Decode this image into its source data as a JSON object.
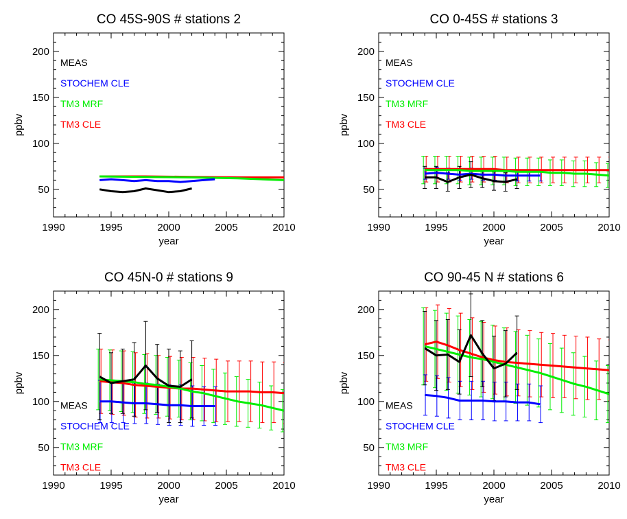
{
  "colors": {
    "MEAS": "#000000",
    "STOCHEM CLE": "#0000ff",
    "TM3 MRF": "#00ee00",
    "TM3 CLE": "#ff0000"
  },
  "legend_labels": [
    "MEAS",
    "STOCHEM CLE",
    "TM3 MRF",
    "TM3 CLE"
  ],
  "chart_data": [
    {
      "type": "line",
      "title": "CO 45S-90S # stations 2",
      "xlabel": "year",
      "ylabel": "ppbv",
      "xlim": [
        1990,
        2010
      ],
      "ylim": [
        20,
        220
      ],
      "xticks": [
        1990,
        1995,
        2000,
        2005,
        2010
      ],
      "yticks": [
        50,
        100,
        150,
        200
      ],
      "legend_position": "upper-left",
      "series": [
        {
          "name": "MEAS",
          "x": [
            1994,
            1995,
            1996,
            1997,
            1998,
            1999,
            2000,
            2001,
            2002
          ],
          "values": [
            50,
            48,
            47,
            48,
            51,
            49,
            47,
            48,
            51
          ]
        },
        {
          "name": "STOCHEM CLE",
          "x": [
            1994,
            1995,
            1996,
            1997,
            1998,
            1999,
            2000,
            2001,
            2002,
            2003,
            2004
          ],
          "values": [
            60,
            61,
            60,
            59,
            60,
            59,
            59,
            58,
            59,
            60,
            61
          ]
        },
        {
          "name": "TM3 MRF",
          "x": [
            1994,
            1998,
            2002,
            2006,
            2010
          ],
          "values": [
            64,
            63.5,
            63,
            62,
            60
          ]
        },
        {
          "name": "TM3 CLE",
          "x": [
            1994,
            1998,
            2002,
            2006,
            2010
          ],
          "values": [
            64,
            64,
            63.5,
            63,
            63
          ]
        }
      ]
    },
    {
      "type": "line",
      "title": "CO 0-45S # stations 3",
      "xlabel": "year",
      "ylabel": "ppbv",
      "xlim": [
        1990,
        2010
      ],
      "ylim": [
        20,
        220
      ],
      "xticks": [
        1990,
        1995,
        2000,
        2005,
        2010
      ],
      "yticks": [
        50,
        100,
        150,
        200
      ],
      "legend_position": "upper-left",
      "series": [
        {
          "name": "MEAS",
          "x": [
            1994,
            1995,
            1996,
            1997,
            1998,
            1999,
            2000,
            2001,
            2002
          ],
          "values": [
            63,
            63,
            58,
            63,
            66,
            62,
            59,
            58,
            61
          ],
          "err": [
            12,
            12,
            10,
            12,
            14,
            10,
            10,
            10,
            10
          ]
        },
        {
          "name": "STOCHEM CLE",
          "x": [
            1994,
            1995,
            1996,
            1997,
            1998,
            1999,
            2000,
            2001,
            2002,
            2003,
            2004
          ],
          "values": [
            67,
            68,
            67,
            66,
            67,
            66,
            66,
            65,
            65,
            65,
            65
          ],
          "err": [
            6,
            6,
            6,
            6,
            6,
            6,
            6,
            6,
            6,
            6,
            6
          ]
        },
        {
          "name": "TM3 MRF",
          "x": [
            1994,
            1995,
            1996,
            1997,
            1998,
            1999,
            2000,
            2001,
            2002,
            2003,
            2004,
            2005,
            2006,
            2007,
            2008,
            2009,
            2010
          ],
          "values": [
            71,
            71,
            71,
            71,
            70,
            70,
            70,
            70,
            69,
            69,
            69,
            68,
            68,
            67,
            67,
            66,
            65
          ],
          "err": [
            15,
            15,
            15,
            15,
            15,
            15,
            15,
            15,
            15,
            15,
            15,
            14,
            14,
            14,
            14,
            13,
            13
          ]
        },
        {
          "name": "TM3 CLE",
          "x": [
            1994,
            1995,
            1996,
            1997,
            1998,
            1999,
            2000,
            2001,
            2002,
            2003,
            2004,
            2005,
            2006,
            2007,
            2008,
            2009,
            2010
          ],
          "values": [
            72,
            72,
            72,
            72,
            72,
            72,
            72,
            71,
            71,
            71,
            71,
            71,
            71,
            71,
            71,
            71,
            71
          ],
          "err": [
            14,
            14,
            14,
            14,
            14,
            14,
            14,
            14,
            14,
            14,
            14,
            14,
            14,
            14,
            14,
            14,
            14
          ]
        }
      ]
    },
    {
      "type": "line",
      "title": "CO 45N-0 # stations 9",
      "xlabel": "year",
      "ylabel": "ppbv",
      "xlim": [
        1990,
        2010
      ],
      "ylim": [
        20,
        220
      ],
      "xticks": [
        1990,
        1995,
        2000,
        2005,
        2010
      ],
      "yticks": [
        50,
        100,
        150,
        200
      ],
      "legend_position": "lower-left",
      "series": [
        {
          "name": "MEAS",
          "x": [
            1994,
            1995,
            1996,
            1997,
            1998,
            1999,
            2000,
            2001,
            2002
          ],
          "values": [
            127,
            120,
            122,
            124,
            139,
            125,
            117,
            116,
            124
          ],
          "err": [
            47,
            33,
            35,
            40,
            48,
            37,
            40,
            39,
            42
          ]
        },
        {
          "name": "STOCHEM CLE",
          "x": [
            1994,
            1995,
            1996,
            1997,
            1998,
            1999,
            2000,
            2001,
            2002,
            2003,
            2004
          ],
          "values": [
            100,
            100,
            99,
            98,
            98,
            97,
            96,
            96,
            95,
            95,
            95
          ],
          "err": [
            23,
            23,
            22,
            22,
            22,
            22,
            22,
            22,
            22,
            21,
            21
          ]
        },
        {
          "name": "TM3 MRF",
          "x": [
            1994,
            1995,
            1996,
            1997,
            1998,
            1999,
            2000,
            2001,
            2002,
            2003,
            2004,
            2005,
            2006,
            2007,
            2008,
            2009,
            2010
          ],
          "values": [
            124,
            123,
            122,
            121,
            119,
            118,
            116,
            114,
            111,
            109,
            106,
            103,
            100,
            98,
            96,
            93,
            90
          ],
          "err": [
            33,
            33,
            33,
            33,
            32,
            32,
            32,
            31,
            31,
            30,
            29,
            28,
            27,
            26,
            25,
            24,
            23
          ]
        },
        {
          "name": "TM3 CLE",
          "x": [
            1994,
            1995,
            1996,
            1997,
            1998,
            1999,
            2000,
            2001,
            2002,
            2003,
            2004,
            2005,
            2006,
            2007,
            2008,
            2009,
            2010
          ],
          "values": [
            122,
            121,
            120,
            118,
            117,
            116,
            115,
            114,
            114,
            113,
            112,
            111,
            111,
            111,
            110,
            110,
            109
          ],
          "err": [
            35,
            35,
            35,
            35,
            35,
            34,
            34,
            34,
            34,
            34,
            34,
            33,
            33,
            33,
            33,
            33,
            33
          ]
        }
      ]
    },
    {
      "type": "line",
      "title": "CO 90-45 N # stations 6",
      "xlabel": "year",
      "ylabel": "ppbv",
      "xlim": [
        1990,
        2010
      ],
      "ylim": [
        20,
        220
      ],
      "xticks": [
        1990,
        1995,
        2000,
        2005,
        2010
      ],
      "yticks": [
        50,
        100,
        150,
        200
      ],
      "legend_position": "lower-left",
      "series": [
        {
          "name": "MEAS",
          "x": [
            1994,
            1995,
            1996,
            1997,
            1998,
            1999,
            2000,
            2001,
            2002
          ],
          "values": [
            158,
            150,
            151,
            143,
            172,
            152,
            136,
            141,
            153
          ],
          "err": [
            40,
            38,
            38,
            35,
            45,
            36,
            35,
            36,
            40
          ]
        },
        {
          "name": "STOCHEM CLE",
          "x": [
            1994,
            1995,
            1996,
            1997,
            1998,
            1999,
            2000,
            2001,
            2002,
            2003,
            2004
          ],
          "values": [
            107,
            106,
            104,
            101,
            101,
            101,
            100,
            100,
            99,
            99,
            97
          ],
          "err": [
            22,
            22,
            22,
            21,
            21,
            21,
            21,
            21,
            20,
            20,
            20
          ]
        },
        {
          "name": "TM3 MRF",
          "x": [
            1994,
            1995,
            1996,
            1997,
            1998,
            1999,
            2000,
            2001,
            2002,
            2003,
            2004,
            2005,
            2006,
            2007,
            2008,
            2009,
            2010
          ],
          "values": [
            160,
            157,
            154,
            151,
            148,
            146,
            143,
            140,
            137,
            134,
            131,
            127,
            123,
            119,
            116,
            112,
            108
          ],
          "err": [
            42,
            42,
            42,
            42,
            41,
            41,
            40,
            40,
            39,
            38,
            37,
            36,
            35,
            34,
            33,
            32,
            31
          ]
        },
        {
          "name": "TM3 CLE",
          "x": [
            1994,
            1995,
            1996,
            1997,
            1998,
            1999,
            2000,
            2001,
            2002,
            2003,
            2004,
            2005,
            2006,
            2007,
            2008,
            2009,
            2010
          ],
          "values": [
            162,
            165,
            161,
            156,
            152,
            148,
            145,
            143,
            142,
            141,
            140,
            139,
            138,
            137,
            136,
            135,
            134
          ],
          "err": [
            40,
            40,
            40,
            40,
            39,
            38,
            37,
            37,
            36,
            36,
            35,
            35,
            34,
            34,
            34,
            33,
            33
          ]
        }
      ]
    }
  ]
}
